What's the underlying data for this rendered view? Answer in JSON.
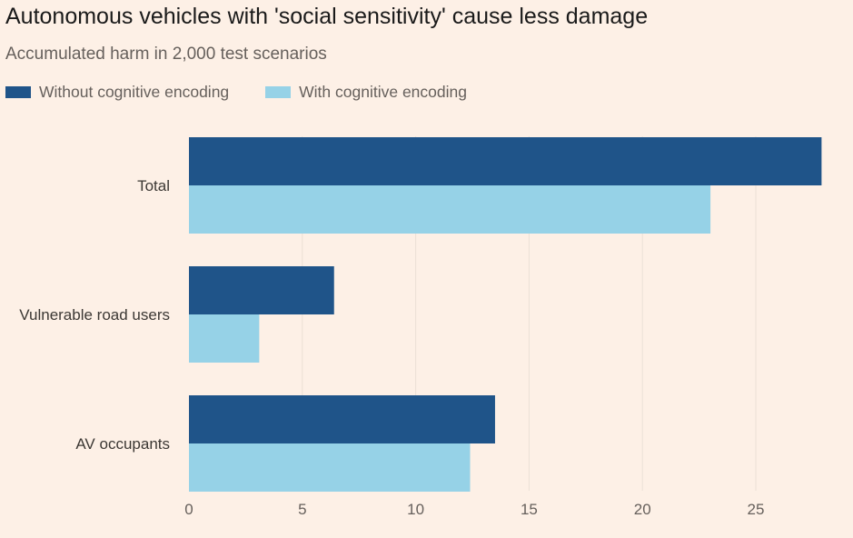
{
  "chart_data": {
    "type": "bar",
    "orientation": "horizontal",
    "title": "Autonomous vehicles with 'social sensitivity' cause less damage",
    "subtitle": "Accumulated harm in 2,000 test scenarios",
    "categories": [
      "Total",
      "Vulnerable road users",
      "AV occupants"
    ],
    "series": [
      {
        "name": "Without cognitive encoding",
        "color": "#1F5489",
        "values": [
          27.9,
          6.4,
          13.5
        ]
      },
      {
        "name": "With cognitive encoding",
        "color": "#96D2E7",
        "values": [
          23,
          3.1,
          12.4
        ]
      }
    ],
    "xlim": [
      0,
      28
    ],
    "xticks": [
      0,
      5,
      10,
      15,
      20,
      25
    ],
    "xlabel": "",
    "ylabel": "",
    "grid": true,
    "legend_position": "top-left"
  }
}
